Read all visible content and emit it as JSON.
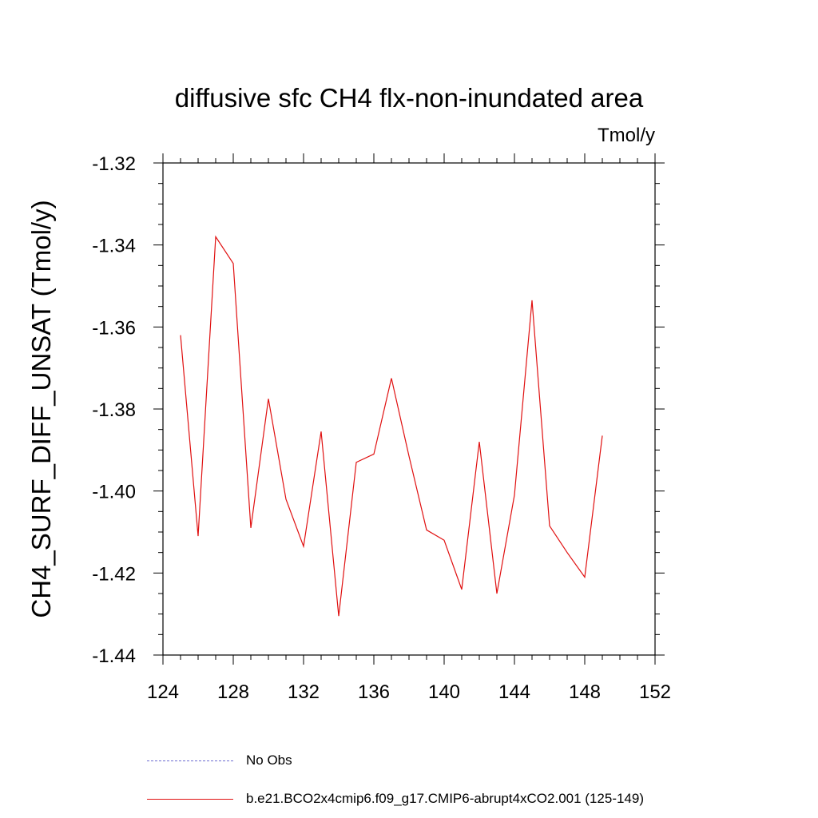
{
  "chart_data": {
    "type": "line",
    "title": "diffusive sfc CH4 flx-non-inundated area",
    "units_label": "Tmol/y",
    "ylabel": "CH4_SURF_DIFF_UNSAT  (Tmol/y)",
    "xlabel": "",
    "xlim": [
      124,
      152
    ],
    "ylim": [
      -1.44,
      -1.32
    ],
    "x_ticks": [
      124,
      128,
      132,
      136,
      140,
      144,
      148,
      152
    ],
    "y_ticks": [
      -1.32,
      -1.34,
      -1.36,
      -1.38,
      -1.4,
      -1.42,
      -1.44
    ],
    "y_tick_labels": [
      "-1.32",
      "-1.34",
      "-1.36",
      "-1.38",
      "-1.40",
      "-1.42",
      "-1.44"
    ],
    "series": [
      {
        "name": "b.e21.BCO2x4cmip6.f09_g17.CMIP6-abrupt4xCO2.001 (125-149)",
        "color": "#e01010",
        "x": [
          125,
          126,
          127,
          128,
          129,
          130,
          131,
          132,
          133,
          134,
          135,
          136,
          137,
          138,
          139,
          140,
          141,
          142,
          143,
          144,
          145,
          146,
          147,
          148,
          149
        ],
        "values": [
          -1.362,
          -1.411,
          -1.338,
          -1.3445,
          -1.409,
          -1.3775,
          -1.402,
          -1.4135,
          -1.3855,
          -1.4305,
          -1.393,
          -1.391,
          -1.3725,
          -1.3915,
          -1.4095,
          -1.412,
          -1.424,
          -1.388,
          -1.425,
          -1.401,
          -1.3535,
          -1.4085,
          -1.415,
          -1.421,
          -1.3865
        ]
      }
    ],
    "legend": [
      {
        "label": "No Obs",
        "style": "dashed",
        "color": "#6a6ad0"
      },
      {
        "label": "b.e21.BCO2x4cmip6.f09_g17.CMIP6-abrupt4xCO2.001 (125-149)",
        "style": "solid",
        "color": "#e01010"
      }
    ]
  }
}
